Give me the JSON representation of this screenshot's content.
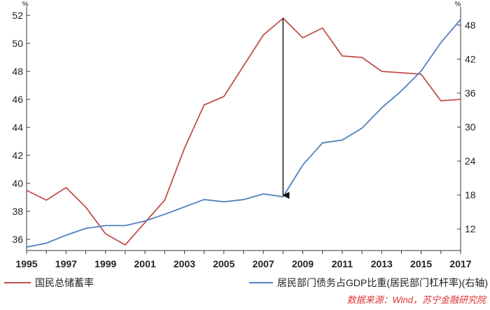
{
  "chart_data": {
    "type": "line",
    "x": [
      1995,
      1996,
      1997,
      1998,
      1999,
      2000,
      2001,
      2002,
      2003,
      2004,
      2005,
      2006,
      2007,
      2008,
      2009,
      2010,
      2011,
      2012,
      2013,
      2014,
      2015,
      2016,
      2017
    ],
    "x_tick_labels": [
      "1995",
      "1997",
      "1999",
      "2001",
      "2003",
      "2005",
      "2007",
      "2009",
      "2011",
      "2013",
      "2015",
      "2017"
    ],
    "y_left": {
      "unit": "%",
      "range": [
        35.2,
        52.6
      ],
      "ticks": [
        36,
        38,
        40,
        42,
        44,
        46,
        48,
        50,
        52
      ]
    },
    "y_right": {
      "unit": "%",
      "range": [
        8.2,
        51.2
      ],
      "ticks": [
        12,
        18,
        24,
        30,
        36,
        42,
        48
      ]
    },
    "series": [
      {
        "name": "国民总储蓄率",
        "axis": "left",
        "color": "#c0504d",
        "values": [
          39.5,
          38.8,
          39.7,
          38.3,
          36.4,
          35.6,
          37.2,
          38.8,
          42.5,
          45.6,
          46.2,
          48.4,
          50.6,
          51.8,
          50.4,
          51.1,
          49.1,
          49.0,
          48.0,
          47.9,
          47.8,
          45.9,
          46.0
        ]
      },
      {
        "name": "居民部门债务占GDP比重(居民部门杠杆率)(右轴)",
        "axis": "right",
        "color": "#4f81bd",
        "values": [
          8.8,
          9.5,
          10.9,
          12.1,
          12.6,
          12.6,
          13.4,
          14.6,
          15.9,
          17.2,
          16.8,
          17.2,
          18.2,
          17.7,
          23.3,
          27.2,
          27.7,
          29.8,
          33.4,
          36.4,
          39.9,
          44.9,
          49.0
        ]
      }
    ],
    "annotation": {
      "type": "arrow",
      "x": 2008,
      "from_series": 0,
      "to_series": 1
    },
    "legend_position": "bottom",
    "grid": false
  },
  "source_text": "数据来源：Wind，苏宁金融研究院"
}
